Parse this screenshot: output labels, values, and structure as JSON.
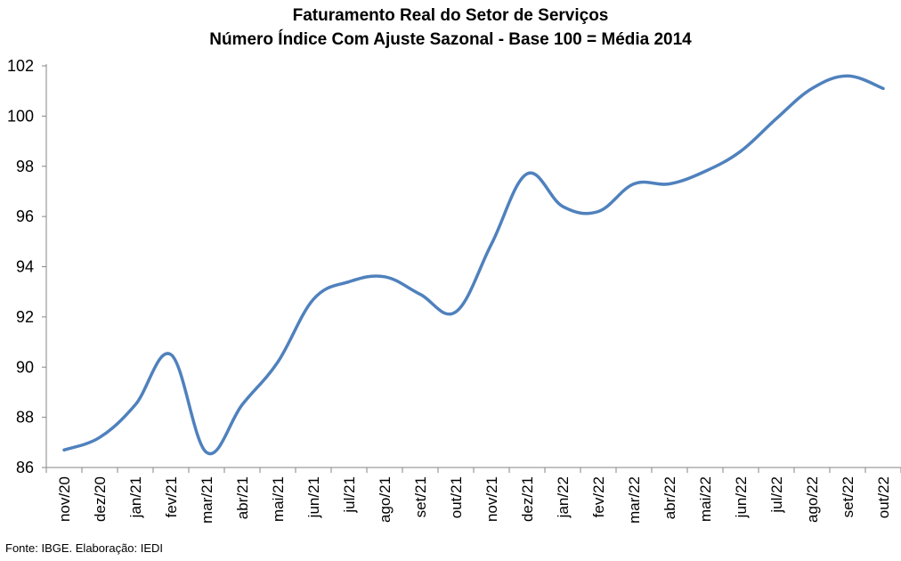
{
  "chart_data": {
    "type": "line",
    "title": "Faturamento Real do Setor de Serviços",
    "subtitle": "Número Índice Com Ajuste Sazonal - Base 100 = Média 2014",
    "xlabel": "",
    "ylabel": "",
    "ylim": [
      86,
      102
    ],
    "yticks": [
      86,
      88,
      90,
      92,
      94,
      96,
      98,
      100,
      102
    ],
    "grid": false,
    "legend": "none",
    "categories": [
      "nov/20",
      "dez/20",
      "jan/21",
      "fev/21",
      "mar/21",
      "abr/21",
      "mai/21",
      "jun/21",
      "jul/21",
      "ago/21",
      "set/21",
      "out/21",
      "nov/21",
      "dez/21",
      "jan/22",
      "fev/22",
      "mar/22",
      "abr/22",
      "mai/22",
      "jun/22",
      "jul/22",
      "ago/22",
      "set/22",
      "out/22"
    ],
    "series": [
      {
        "values": [
          86.7,
          87.2,
          88.5,
          90.5,
          86.6,
          88.5,
          90.2,
          92.7,
          93.4,
          93.6,
          92.9,
          92.2,
          94.9,
          97.7,
          96.4,
          96.2,
          97.3,
          97.3,
          97.8,
          98.6,
          99.9,
          101.1,
          101.6,
          101.1
        ],
        "color": "#4F81BD"
      }
    ]
  },
  "footer": {
    "source": "Fonte: IBGE. Elaboração: IEDI"
  }
}
